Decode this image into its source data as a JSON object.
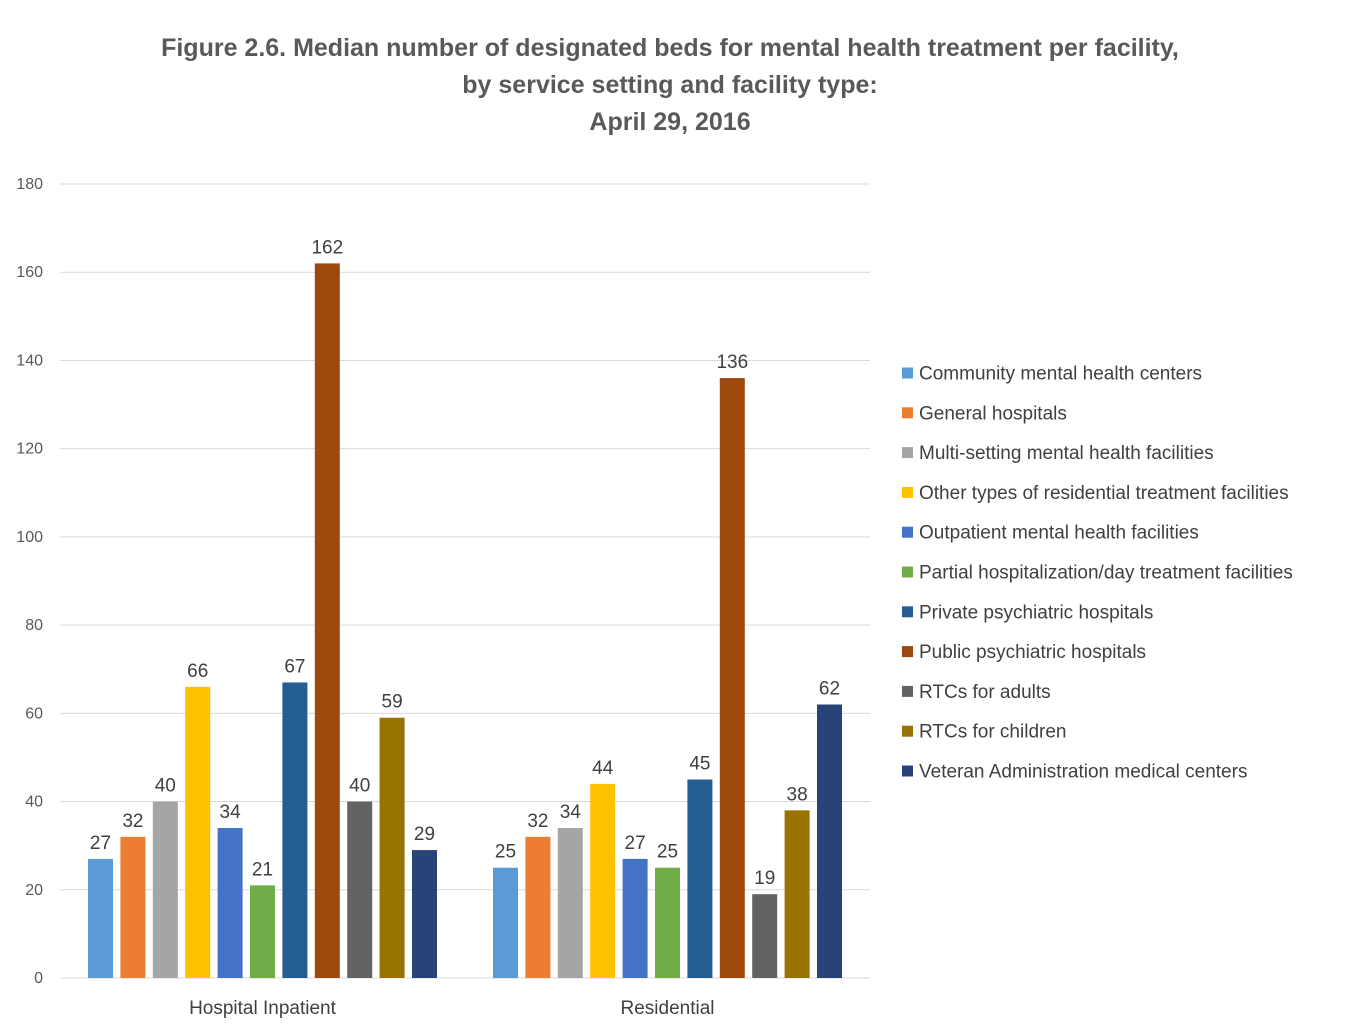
{
  "chart_data": {
    "type": "bar",
    "title_lines": [
      "Figure 2.6. Median number of designated beds for mental health treatment per facility,",
      "by service setting and facility type:",
      "April 29, 2016"
    ],
    "categories": [
      "Hospital Inpatient",
      "Residential"
    ],
    "ylim": [
      0,
      180
    ],
    "yticks": [
      0,
      20,
      40,
      60,
      80,
      100,
      120,
      140,
      160,
      180
    ],
    "grid": true,
    "legend_position": "right",
    "series": [
      {
        "name": "Community mental health centers",
        "color": "#5B9BD5",
        "values": [
          27,
          25
        ]
      },
      {
        "name": "General hospitals",
        "color": "#ED7D31",
        "values": [
          32,
          32
        ]
      },
      {
        "name": "Multi-setting mental health facilities",
        "color": "#A5A5A5",
        "values": [
          40,
          34
        ]
      },
      {
        "name": "Other types of residential treatment facilities",
        "color": "#FFC000",
        "values": [
          66,
          44
        ]
      },
      {
        "name": "Outpatient mental health facilities",
        "color": "#4472C4",
        "values": [
          34,
          27
        ]
      },
      {
        "name": "Partial hospitalization/day treatment facilities",
        "color": "#70AD47",
        "values": [
          21,
          25
        ]
      },
      {
        "name": "Private psychiatric hospitals",
        "color": "#255E91",
        "values": [
          67,
          45
        ]
      },
      {
        "name": "Public psychiatric hospitals",
        "color": "#9E480E",
        "values": [
          162,
          136
        ]
      },
      {
        "name": "RTCs for adults",
        "color": "#636363",
        "values": [
          40,
          19
        ]
      },
      {
        "name": "RTCs for children",
        "color": "#997300",
        "values": [
          59,
          38
        ]
      },
      {
        "name": "Veteran Administration medical centers",
        "color": "#264478",
        "values": [
          29,
          62
        ]
      }
    ]
  }
}
